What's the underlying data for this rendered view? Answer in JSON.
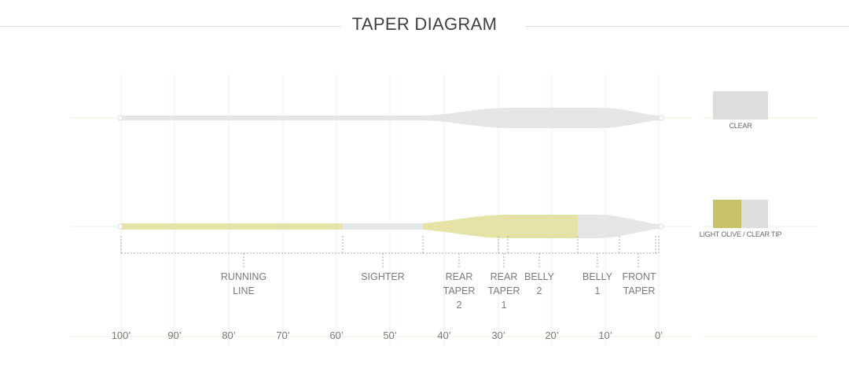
{
  "title": "TAPER DIAGRAM",
  "colors": {
    "clear": "#e5e6e6",
    "clear_swatch": "#dcdddd",
    "olive": "#e6e3a8",
    "olive_swatch": "#c9c06a",
    "grid": "#f1efdf",
    "tick": "#a8a8a8"
  },
  "lines": [
    {
      "name": "clear",
      "label": "CLEAR"
    },
    {
      "name": "olive",
      "label": "LIGHT OLIVE / CLEAR TIP"
    }
  ],
  "segments": [
    {
      "label_lines": [
        "RUNNING",
        "LINE"
      ]
    },
    {
      "label_lines": [
        "SIGHTER"
      ]
    },
    {
      "label_lines": [
        "REAR",
        "TAPER",
        "2"
      ]
    },
    {
      "label_lines": [
        "REAR",
        "TAPER",
        "1"
      ]
    },
    {
      "label_lines": [
        "BELLY",
        "2"
      ]
    },
    {
      "label_lines": [
        "BELLY",
        "1"
      ]
    },
    {
      "label_lines": [
        "FRONT",
        "TAPER"
      ]
    }
  ],
  "scale": [
    "100’",
    "90’",
    "80’",
    "70’",
    "60’",
    "50’",
    "40’",
    "30’",
    "20’",
    "10’",
    "0’"
  ]
}
